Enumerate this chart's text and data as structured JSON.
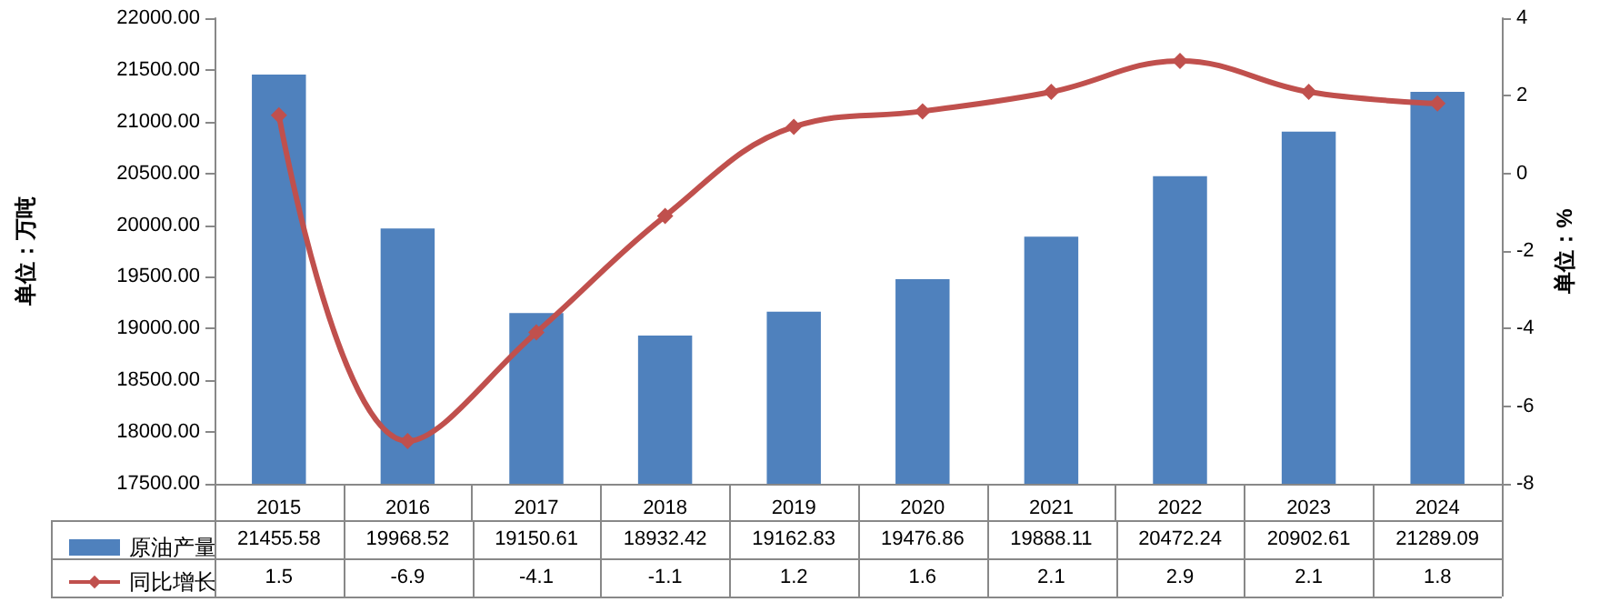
{
  "chart_data": {
    "type": "bar",
    "categories": [
      "2015",
      "2016",
      "2017",
      "2018",
      "2019",
      "2020",
      "2021",
      "2022",
      "2023",
      "2024"
    ],
    "series": [
      {
        "name": "原油产量",
        "color": "#4f81bd",
        "values": [
          21455.58,
          19968.52,
          19150.61,
          18932.42,
          19162.83,
          19476.86,
          19888.11,
          20472.24,
          20902.61,
          21289.09
        ]
      },
      {
        "name": "同比增长",
        "type": "line",
        "axis": "y2",
        "color": "#c0504d",
        "marker": "diamond",
        "values": [
          1.5,
          -6.9,
          -4.1,
          -1.1,
          1.2,
          1.6,
          2.1,
          2.9,
          2.1,
          1.8
        ]
      }
    ],
    "ylabel": "单位：万吨",
    "y2label": "单位：%",
    "ylim": [
      17500,
      22000
    ],
    "yticks": [
      {
        "value": 17500,
        "label": "17500.00"
      },
      {
        "value": 18000,
        "label": "18000.00"
      },
      {
        "value": 18500,
        "label": "18500.00"
      },
      {
        "value": 19000,
        "label": "19000.00"
      },
      {
        "value": 19500,
        "label": "19500.00"
      },
      {
        "value": 20000,
        "label": "20000.00"
      },
      {
        "value": 20500,
        "label": "20500.00"
      },
      {
        "value": 21000,
        "label": "21000.00"
      },
      {
        "value": 21500,
        "label": "21500.00"
      },
      {
        "value": 22000,
        "label": "22000.00"
      }
    ],
    "y2lim": [
      -8,
      4
    ],
    "y2ticks": [
      -8,
      -6,
      -4,
      -2,
      0,
      2,
      4
    ],
    "data_labels": true,
    "legend": "bottom"
  }
}
